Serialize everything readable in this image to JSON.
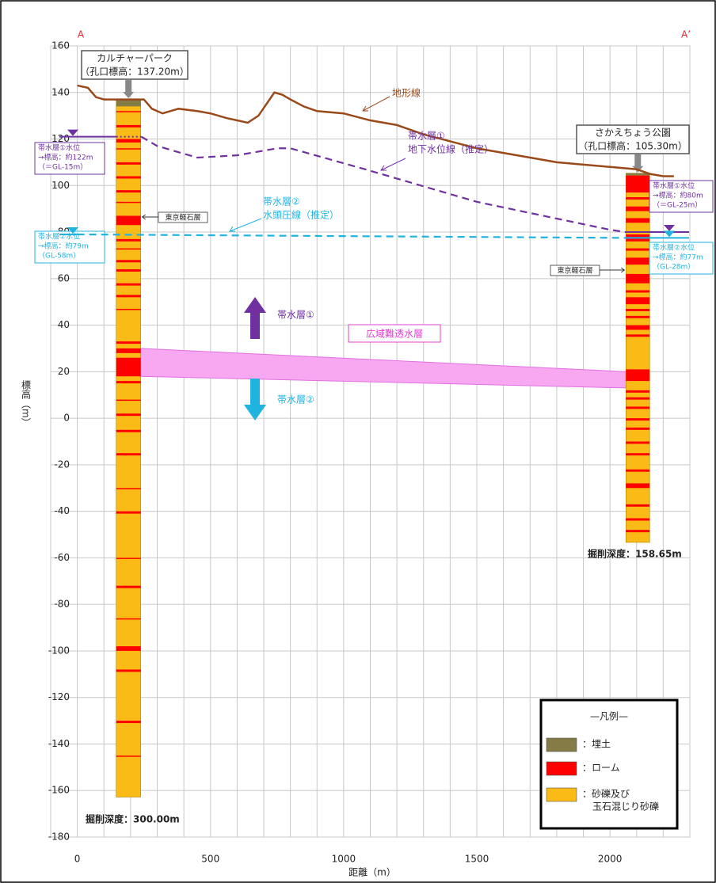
{
  "chart_data": {
    "type": "cross-section",
    "x_label": "距離（m）",
    "y_label": "標高（m）",
    "section_labels": [
      "A",
      "A’"
    ],
    "xlim": [
      -100,
      2300
    ],
    "ylim": [
      -180,
      160
    ],
    "xticks": [
      0,
      500,
      1000,
      1500,
      2000
    ],
    "yticks": [
      -180,
      -160,
      -140,
      -120,
      -100,
      -80,
      -60,
      -40,
      -20,
      0,
      20,
      40,
      60,
      80,
      100,
      120,
      140,
      160
    ],
    "xgrid": [
      -100,
      0,
      100,
      200,
      300,
      400,
      500,
      600,
      700,
      800,
      900,
      1000,
      1100,
      1200,
      1300,
      1400,
      1500,
      1600,
      1700,
      1800,
      1900,
      2000,
      2100,
      2200,
      2300
    ],
    "grid": true,
    "series": [
      {
        "name": "地形線",
        "color": "#9a4a1a",
        "style": "solid",
        "x": [
          0,
          40,
          70,
          100,
          150,
          250,
          280,
          320,
          380,
          450,
          500,
          560,
          600,
          640,
          680,
          710,
          740,
          770,
          800,
          850,
          900,
          1000,
          1100,
          1200,
          1300,
          1400,
          1500,
          1600,
          1700,
          1800,
          1900,
          2000,
          2100,
          2150,
          2200,
          2240
        ],
        "values": [
          143,
          142,
          138,
          137,
          137,
          137,
          133,
          131,
          133,
          132,
          131,
          129,
          128,
          127,
          130,
          135,
          140,
          139,
          137,
          134,
          132,
          131,
          128,
          126,
          122,
          119,
          116,
          114,
          112,
          110,
          109,
          108,
          107,
          105,
          104,
          104
        ]
      },
      {
        "name": "地下水位線（推定）",
        "color": "#7030a0",
        "style": "dashed",
        "x": [
          240,
          300,
          450,
          600,
          750,
          800,
          1080,
          1500,
          2000,
          2060
        ],
        "values": [
          121,
          117,
          112,
          113,
          116,
          116,
          107,
          93,
          81,
          80
        ]
      },
      {
        "name": "水頭圧線（推定）",
        "color": "#1fb4e0",
        "style": "dashed",
        "x": [
          0,
          2060
        ],
        "values": [
          79,
          77.5
        ]
      }
    ],
    "aquitard": {
      "name": "広域難透水層",
      "color": "#f7a8f0",
      "text_color": "#e040d0",
      "x": [
        238,
        2060
      ],
      "top": [
        30,
        20
      ],
      "bottom": [
        18,
        13
      ]
    },
    "boreholes": [
      {
        "name": [
          "カルチャーパーク",
          "（孔口標高：137.20m）"
        ],
        "x": [
          146,
          238
        ],
        "top": 137.2,
        "fill_bottom": 134,
        "bottom": -162.8,
        "depth_label": "掘削深度：300.00m",
        "pumice_label": "東京軽石層",
        "loam": [
          [
            132,
            131.5
          ],
          [
            126,
            125
          ],
          [
            120,
            118.5
          ],
          [
            116,
            115.5
          ],
          [
            110,
            109
          ],
          [
            104,
            103
          ],
          [
            98,
            97
          ],
          [
            93,
            92.5
          ],
          [
            87,
            83
          ],
          [
            77,
            76
          ],
          [
            73,
            72.5
          ],
          [
            68,
            67
          ],
          [
            64,
            63
          ],
          [
            58,
            57
          ],
          [
            53,
            52
          ],
          [
            47,
            46.5
          ],
          [
            33,
            32
          ],
          [
            30,
            28
          ],
          [
            26,
            18
          ],
          [
            16,
            15
          ],
          [
            8,
            7.5
          ],
          [
            2,
            1
          ],
          [
            -5,
            -6
          ],
          [
            -15,
            -16
          ],
          [
            -30,
            -30.5
          ],
          [
            -40,
            -41
          ],
          [
            -60,
            -60.5
          ],
          [
            -72,
            -73
          ],
          [
            -86,
            -86.5
          ],
          [
            -98,
            -100
          ],
          [
            -108,
            -109
          ],
          [
            -130,
            -131
          ],
          [
            -145,
            -145.5
          ]
        ],
        "levels": [
          [
            "帯水層①水位",
            "→標高：約122m",
            "（＝GL-15m）"
          ],
          [
            "帯水層②水位",
            "→標高：約79m",
            "（GL-58m）"
          ]
        ]
      },
      {
        "name": [
          "さかえちょう公園",
          "（孔口標高：105.30m）"
        ],
        "x": [
          2060,
          2149
        ],
        "top": 105.3,
        "fill_bottom": 104.3,
        "bottom": -53.35,
        "depth_label": "掘削深度：158.65m",
        "pumice_label": "東京軽石層",
        "loam": [
          [
            104.3,
            97
          ],
          [
            95,
            94
          ],
          [
            91,
            89
          ],
          [
            86,
            84
          ],
          [
            79,
            76
          ],
          [
            73,
            72
          ],
          [
            69,
            66
          ],
          [
            62,
            58
          ],
          [
            55,
            54
          ],
          [
            52,
            49
          ],
          [
            47,
            46
          ],
          [
            44,
            43
          ],
          [
            40,
            38
          ],
          [
            36,
            35
          ],
          [
            21,
            16
          ],
          [
            12,
            11
          ],
          [
            9,
            8
          ],
          [
            5,
            4
          ],
          [
            0,
            -1
          ],
          [
            -4,
            -5
          ],
          [
            -10,
            -11
          ],
          [
            -15,
            -16
          ],
          [
            -22,
            -23
          ],
          [
            -28,
            -30
          ],
          [
            -37,
            -38
          ],
          [
            -43,
            -44
          ],
          [
            -48,
            -49
          ]
        ],
        "levels": [
          [
            "帯水層①水位",
            "→標高：約80m",
            "（＝GL-25m）"
          ],
          [
            "帯水層②水位",
            "→標高：約77m",
            "（GL-28m）"
          ]
        ]
      }
    ],
    "annotations": {
      "terrain": "地形線",
      "aquifer1_line": [
        "帯水層①",
        "地下水位線（推定）"
      ],
      "aquifer2_line": [
        "帯水層②",
        "水頭圧線（推定）"
      ],
      "aquifer1": "帯水層①",
      "aquifer2": "帯水層②"
    },
    "legend": {
      "title": "—凡例—",
      "items": [
        {
          "label": [
            "：埋土"
          ],
          "color": "#857b46"
        },
        {
          "label": [
            "：ローム"
          ],
          "color": "#ff0000"
        },
        {
          "label": [
            "：砂礫及び",
            "玉石混じり砂礫"
          ],
          "color": "#fbbb16"
        }
      ]
    }
  }
}
